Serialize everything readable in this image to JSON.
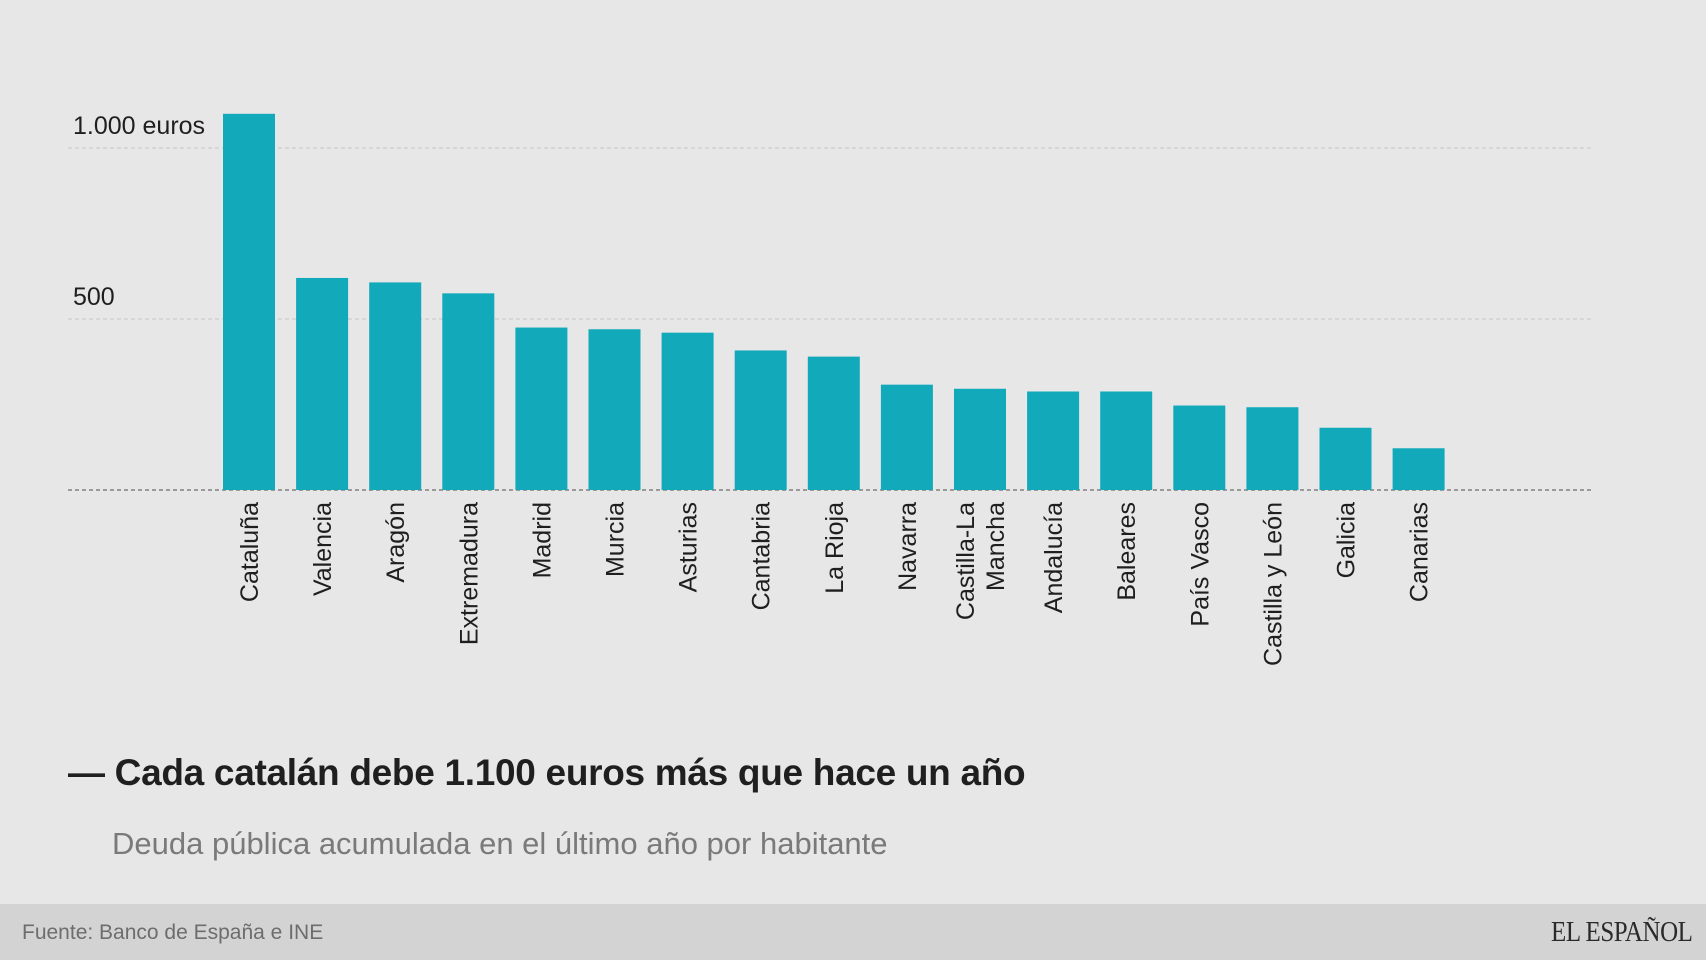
{
  "chart_data": {
    "type": "bar",
    "categories": [
      "Cataluña",
      "Valencia",
      "Aragón",
      "Extremadura",
      "Madrid",
      "Murcia",
      "Asturias",
      "Cantabria",
      "La Rioja",
      "Navarra",
      "Castilla-La Mancha",
      "Andalucía",
      "Baleares",
      "País Vasco",
      "Castilla y León",
      "Galicia",
      "Canarias"
    ],
    "values": [
      1100,
      620,
      607,
      575,
      475,
      470,
      460,
      408,
      390,
      308,
      296,
      288,
      288,
      247,
      242,
      182,
      122
    ],
    "yticks": [
      {
        "value": 1000,
        "label": "1.000 euros"
      },
      {
        "value": 500,
        "label": "500"
      }
    ],
    "ylim": [
      0,
      1100
    ],
    "bar_color": "#12a9ba",
    "grid": true,
    "title": "— Cada catalán debe 1.100 euros más que hace un año",
    "subtitle": "Deuda pública acumulada en el último año por habitante"
  },
  "footer": {
    "source": "Fuente: Banco de España e INE",
    "brand": "EL ESPAÑOL"
  }
}
